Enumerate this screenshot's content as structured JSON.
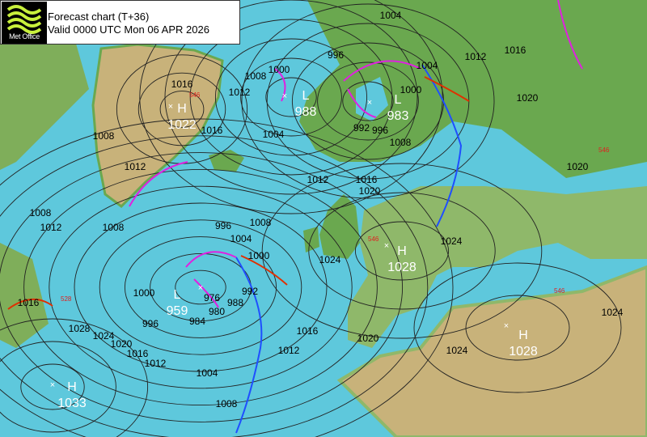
{
  "header": {
    "logo_text": "Met Office",
    "title": "Forecast chart (T+36)",
    "valid": "Valid 0000 UTC Mon 06 APR 2026"
  },
  "colors": {
    "sea": "#5ec8dc",
    "land_low": "#6aa84f",
    "land_high": "#c8b27a",
    "isobar": "#000000",
    "cold_front": "#1f4fff",
    "warm_front": "#e03000",
    "occluded_front": "#e020e0",
    "thickness": "#e02020"
  },
  "pressure_centres": [
    {
      "type": "L",
      "value": "988"
    },
    {
      "type": "L",
      "value": "983"
    },
    {
      "type": "H",
      "value": "1022"
    },
    {
      "type": "L",
      "value": "959"
    },
    {
      "type": "H",
      "value": "1028"
    },
    {
      "type": "H",
      "value": "1028"
    },
    {
      "type": "H",
      "value": "1033"
    }
  ],
  "isobar_labels": [
    "1004",
    "996",
    "1012",
    "1016",
    "1004",
    "1000",
    "1020",
    "1016",
    "1012",
    "1008",
    "1000",
    "1016",
    "1008",
    "1004",
    "992",
    "996",
    "1008",
    "1012",
    "1016",
    "1020",
    "1012",
    "1008",
    "1012",
    "1008",
    "996",
    "1008",
    "1004",
    "1000",
    "1024",
    "1024",
    "1020",
    "1000",
    "996",
    "976",
    "980",
    "984",
    "988",
    "992",
    "1016",
    "1028",
    "1024",
    "1020",
    "1016",
    "1012",
    "1016",
    "1012",
    "1020",
    "1024",
    "1024",
    "1004",
    "1008"
  ],
  "thickness_labels": [
    "546",
    "546",
    "546",
    "528",
    "546"
  ]
}
